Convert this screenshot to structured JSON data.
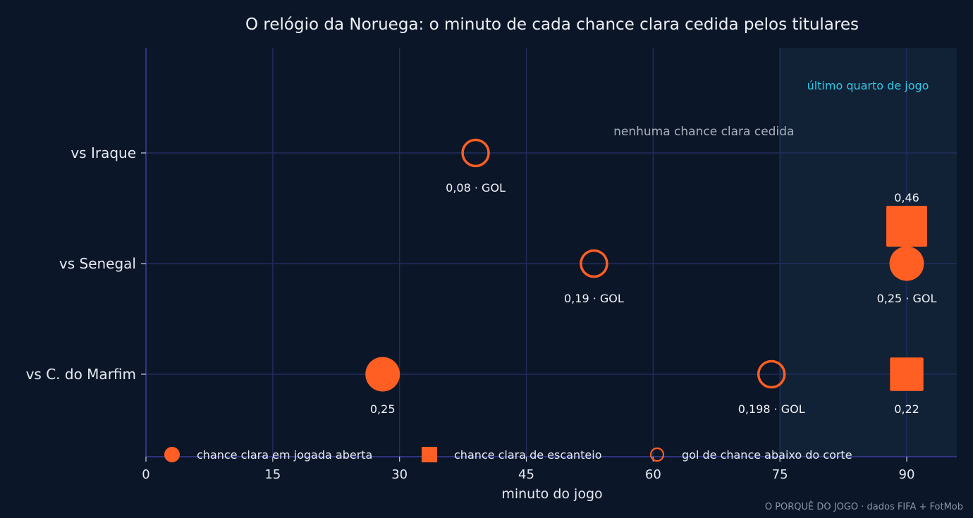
{
  "chart_data": {
    "type": "scatter",
    "title": "O relógio da Noruega: o minuto de cada chance clara cedida pelos titulares",
    "xlabel": "minuto do jogo",
    "ylabel": "",
    "xlim": [
      0,
      96
    ],
    "xticks": [
      0,
      15,
      30,
      45,
      60,
      75,
      90
    ],
    "categories": [
      "vs Iraque",
      "vs Senegal",
      "vs C. do Marfim"
    ],
    "grid": true,
    "highlight_zone": {
      "from": 75,
      "to": 96,
      "label": "último quarto de jogo"
    },
    "annotations": [
      {
        "text": "nenhuma chance clara cedida",
        "near_category": "vs Iraque",
        "x": 66
      }
    ],
    "points": [
      {
        "category": "vs Iraque",
        "minute": 39,
        "xg": 0.08,
        "kind": "gol",
        "label": "0,08 · GOL"
      },
      {
        "category": "vs Senegal",
        "minute": 53,
        "xg": 0.19,
        "kind": "gol",
        "label": "0,19 · GOL"
      },
      {
        "category": "vs Senegal",
        "minute": 90,
        "xg": 0.25,
        "kind": "aberta",
        "label": "0,25 · GOL"
      },
      {
        "category": "vs Senegal",
        "minute": 90,
        "xg": 0.46,
        "kind": "escanteio",
        "label": "0,46",
        "offset": "above"
      },
      {
        "category": "vs C. do Marfim",
        "minute": 28,
        "xg": 0.25,
        "kind": "aberta",
        "label": "0,25"
      },
      {
        "category": "vs C. do Marfim",
        "minute": 74,
        "xg": 0.198,
        "kind": "gol",
        "label": "0,198 · GOL"
      },
      {
        "category": "vs C. do Marfim",
        "minute": 90,
        "xg": 0.22,
        "kind": "escanteio",
        "label": "0,22"
      }
    ],
    "legend": {
      "placement": "bottom",
      "items": [
        {
          "kind": "aberta",
          "label": "chance clara em jogada aberta"
        },
        {
          "kind": "escanteio",
          "label": "chance clara de escanteio"
        },
        {
          "kind": "gol",
          "label": "gol de chance abaixo do corte"
        }
      ]
    },
    "credit": "O PORQUÊ DO JOGO · dados FIFA + FotMob",
    "colors": {
      "background": "#0b1628",
      "marker": "#ff5f22",
      "grid": "#222c5e",
      "axis": "#3a3f9a",
      "zone": "#112236",
      "zone_label": "#33c6e6"
    }
  }
}
